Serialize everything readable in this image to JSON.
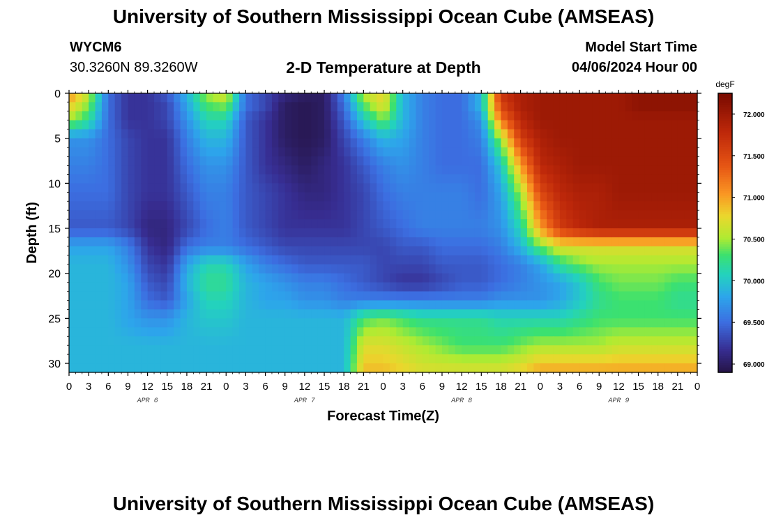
{
  "header": {
    "title": "University of Southern Mississippi Ocean Cube (AMSEAS)",
    "station": "WYCM6",
    "coords": "30.3260N  89.3260W",
    "subtitle": "2-D Temperature at Depth",
    "start_label": "Model Start Time",
    "start_value": "04/06/2024 Hour 00"
  },
  "footer": {
    "title": "University of Southern Mississippi Ocean Cube (AMSEAS)"
  },
  "chart_data": {
    "type": "heatmap",
    "title": "2-D Temperature at Depth",
    "xlabel": "Forecast Time(Z)",
    "ylabel": "Depth (ft)",
    "x_hours": [
      0,
      96
    ],
    "x_tick_step_hours": 3,
    "x_tick_labels": [
      "0",
      "3",
      "6",
      "9",
      "12",
      "15",
      "18",
      "21",
      "0",
      "3",
      "6",
      "9",
      "12",
      "15",
      "18",
      "21",
      "0",
      "3",
      "6",
      "9",
      "12",
      "15",
      "18",
      "21",
      "0",
      "3",
      "6",
      "9",
      "12",
      "15",
      "18",
      "21",
      "0"
    ],
    "date_labels": [
      {
        "label": "APR 6",
        "hour": 12
      },
      {
        "label": "APR 7",
        "hour": 36
      },
      {
        "label": "APR 8",
        "hour": 60
      },
      {
        "label": "APR 9",
        "hour": 84
      }
    ],
    "ylim": [
      0,
      31
    ],
    "y_ticks": [
      0,
      5,
      10,
      15,
      20,
      25,
      30
    ],
    "y_inverted": true,
    "colorbar": {
      "unit": "degF",
      "min": 68.9,
      "max": 72.25,
      "ticks": [
        "69.000",
        "69.500",
        "70.000",
        "70.500",
        "71.000",
        "71.500",
        "72.000"
      ]
    },
    "depth_levels_ft": [
      0,
      1.5,
      3,
      5,
      8,
      11,
      15,
      17,
      19,
      21,
      23,
      25,
      28,
      31
    ],
    "times_h": [
      0,
      3,
      6,
      9,
      12,
      15,
      18,
      21,
      24,
      27,
      30,
      33,
      36,
      39,
      42,
      45,
      48,
      51,
      54,
      57,
      60,
      63,
      66,
      69,
      72,
      75,
      78,
      81,
      84,
      87,
      90,
      93,
      96
    ],
    "values_degF": [
      [
        71.1,
        70.6,
        69.5,
        69.2,
        69.2,
        69.4,
        69.9,
        70.5,
        70.7,
        69.5,
        69.3,
        69.1,
        69.0,
        69.0,
        69.6,
        70.6,
        70.8,
        69.9,
        69.6,
        69.5,
        69.5,
        69.9,
        71.7,
        71.9,
        72.0,
        72.0,
        72.0,
        72.0,
        72.0,
        72.1,
        72.1,
        72.1,
        72.1
      ],
      [
        70.8,
        70.4,
        69.5,
        69.2,
        69.2,
        69.3,
        69.8,
        70.3,
        70.4,
        69.5,
        69.3,
        69.0,
        68.95,
        69.0,
        69.5,
        70.3,
        70.7,
        69.9,
        69.6,
        69.5,
        69.5,
        69.9,
        71.5,
        71.9,
        72.0,
        72.0,
        72.0,
        72.0,
        72.0,
        72.1,
        72.1,
        72.1,
        72.1
      ],
      [
        70.5,
        70.2,
        69.5,
        69.2,
        69.2,
        69.3,
        69.7,
        70.1,
        70.1,
        69.4,
        69.2,
        69.0,
        68.95,
        69.0,
        69.4,
        70.0,
        70.4,
        69.9,
        69.6,
        69.5,
        69.5,
        69.7,
        71.2,
        71.8,
        72.0,
        72.0,
        72.0,
        72.0,
        72.0,
        72.0,
        72.0,
        72.0,
        72.0
      ],
      [
        69.7,
        69.7,
        69.5,
        69.3,
        69.2,
        69.2,
        69.6,
        69.9,
        69.9,
        69.4,
        69.2,
        69.0,
        68.95,
        69.0,
        69.3,
        69.6,
        69.9,
        69.8,
        69.6,
        69.5,
        69.5,
        69.6,
        70.5,
        71.6,
        71.9,
        72.0,
        72.0,
        72.0,
        72.0,
        72.0,
        72.0,
        72.0,
        72.0
      ],
      [
        69.6,
        69.6,
        69.5,
        69.3,
        69.2,
        69.2,
        69.5,
        69.7,
        69.7,
        69.4,
        69.2,
        69.1,
        69.0,
        69.1,
        69.2,
        69.4,
        69.6,
        69.7,
        69.6,
        69.5,
        69.5,
        69.5,
        70.0,
        71.0,
        71.8,
        71.9,
        72.0,
        72.0,
        72.0,
        72.0,
        72.0,
        72.0,
        72.0
      ],
      [
        69.5,
        69.5,
        69.5,
        69.3,
        69.2,
        69.2,
        69.4,
        69.6,
        69.6,
        69.4,
        69.3,
        69.2,
        69.1,
        69.1,
        69.2,
        69.3,
        69.5,
        69.6,
        69.6,
        69.6,
        69.6,
        69.5,
        69.8,
        70.5,
        71.5,
        71.8,
        71.9,
        71.9,
        72.0,
        72.0,
        72.0,
        72.0,
        72.0
      ],
      [
        69.4,
        69.4,
        69.4,
        69.3,
        69.1,
        69.1,
        69.3,
        69.5,
        69.6,
        69.4,
        69.3,
        69.2,
        69.2,
        69.2,
        69.2,
        69.3,
        69.4,
        69.5,
        69.6,
        69.6,
        69.6,
        69.6,
        69.7,
        70.1,
        71.0,
        71.6,
        71.8,
        71.9,
        71.9,
        71.9,
        71.9,
        71.9,
        71.9
      ],
      [
        69.8,
        69.8,
        69.8,
        69.6,
        69.2,
        69.1,
        69.5,
        69.6,
        69.6,
        69.5,
        69.4,
        69.3,
        69.3,
        69.3,
        69.3,
        69.3,
        69.3,
        69.4,
        69.4,
        69.5,
        69.5,
        69.5,
        69.6,
        69.9,
        70.4,
        70.7,
        70.7,
        70.7,
        70.7,
        70.7,
        70.7,
        70.7,
        70.7
      ],
      [
        69.9,
        69.9,
        69.9,
        69.7,
        69.3,
        69.2,
        69.8,
        70.1,
        70.1,
        69.8,
        69.6,
        69.5,
        69.4,
        69.4,
        69.4,
        69.4,
        69.3,
        69.3,
        69.3,
        69.4,
        69.4,
        69.4,
        69.5,
        69.6,
        69.8,
        70.2,
        70.4,
        70.5,
        70.5,
        70.5,
        70.5,
        70.5,
        70.5
      ],
      [
        69.9,
        69.9,
        69.9,
        69.8,
        69.4,
        69.3,
        69.9,
        70.2,
        70.2,
        69.9,
        69.8,
        69.7,
        69.6,
        69.6,
        69.5,
        69.4,
        69.3,
        69.2,
        69.2,
        69.3,
        69.4,
        69.4,
        69.5,
        69.6,
        69.7,
        69.8,
        70.0,
        70.3,
        70.4,
        70.4,
        70.4,
        70.3,
        70.3
      ],
      [
        69.9,
        69.9,
        69.9,
        69.8,
        69.5,
        69.4,
        69.8,
        70.1,
        70.1,
        69.9,
        69.8,
        69.8,
        69.7,
        69.7,
        69.6,
        69.6,
        69.6,
        69.6,
        69.6,
        69.6,
        69.6,
        69.6,
        69.7,
        69.7,
        69.7,
        69.8,
        70.0,
        70.2,
        70.3,
        70.3,
        70.3,
        70.2,
        70.2
      ],
      [
        69.9,
        69.9,
        69.9,
        69.8,
        69.7,
        69.7,
        69.9,
        70.0,
        70.0,
        69.9,
        69.9,
        69.9,
        69.9,
        69.9,
        69.9,
        70.3,
        70.4,
        70.3,
        70.2,
        70.2,
        70.2,
        70.2,
        70.1,
        70.1,
        70.1,
        70.1,
        70.2,
        70.3,
        70.3,
        70.3,
        70.3,
        70.3,
        70.3
      ],
      [
        69.9,
        69.9,
        69.9,
        69.9,
        69.9,
        69.9,
        69.9,
        69.9,
        69.9,
        69.9,
        69.9,
        69.9,
        69.9,
        69.9,
        69.9,
        70.7,
        70.7,
        70.6,
        70.5,
        70.4,
        70.3,
        70.3,
        70.3,
        70.4,
        70.5,
        70.5,
        70.5,
        70.5,
        70.6,
        70.6,
        70.6,
        70.6,
        70.6
      ],
      [
        69.9,
        69.9,
        69.9,
        69.9,
        69.9,
        69.9,
        69.9,
        69.9,
        69.9,
        69.9,
        69.9,
        69.9,
        69.9,
        69.9,
        69.9,
        70.9,
        70.9,
        70.8,
        70.7,
        70.7,
        70.7,
        70.7,
        70.7,
        70.8,
        71.0,
        71.0,
        71.0,
        71.0,
        71.0,
        71.0,
        71.0,
        71.0,
        71.0
      ]
    ]
  }
}
